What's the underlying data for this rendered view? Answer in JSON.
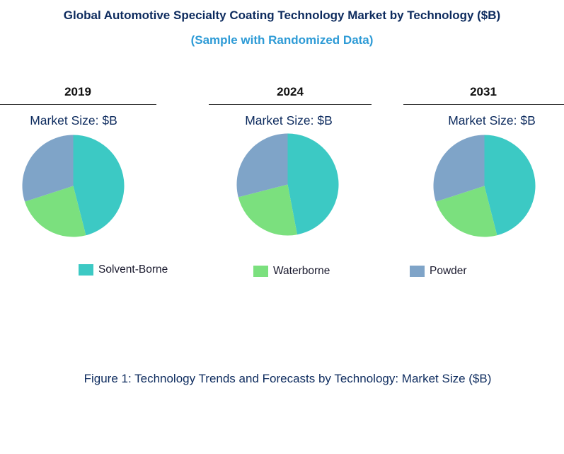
{
  "chart_data": {
    "type": "pie",
    "title": "Global Automotive Specialty Coating Technology Market by Technology ($B)",
    "subtitle": "(Sample with Randomized Data)",
    "caption": "Figure 1: Technology Trends and Forecasts by Technology: Market Size ($B)",
    "categories": [
      "Solvent-Borne",
      "Waterborne",
      "Powder"
    ],
    "colors": [
      "#3cc9c4",
      "#7be07e",
      "#7fa4c8"
    ],
    "pies": [
      {
        "year": "2019",
        "label": "Market Size: $B",
        "values": [
          46,
          24,
          30
        ]
      },
      {
        "year": "2024",
        "label": "Market Size: $B",
        "values": [
          47,
          24,
          29
        ]
      },
      {
        "year": "2031",
        "label": "Market Size: $B",
        "values": [
          46,
          24,
          30
        ]
      }
    ]
  }
}
